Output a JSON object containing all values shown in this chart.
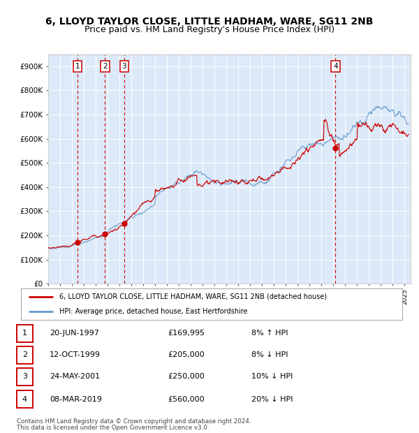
{
  "title": "6, LLOYD TAYLOR CLOSE, LITTLE HADHAM, WARE, SG11 2NB",
  "subtitle": "Price paid vs. HM Land Registry's House Price Index (HPI)",
  "red_label": "6, LLOYD TAYLOR CLOSE, LITTLE HADHAM, WARE, SG11 2NB (detached house)",
  "blue_label": "HPI: Average price, detached house, East Hertfordshire",
  "footer1": "Contains HM Land Registry data © Crown copyright and database right 2024.",
  "footer2": "This data is licensed under the Open Government Licence v3.0.",
  "transactions": [
    {
      "num": 1,
      "date": "20-JUN-1997",
      "price": 169995,
      "price_str": "£169,995",
      "pct": "8%",
      "dir": "↑",
      "year": 1997.47
    },
    {
      "num": 2,
      "date": "12-OCT-1999",
      "price": 205000,
      "price_str": "£205,000",
      "pct": "8%",
      "dir": "↓",
      "year": 1999.78
    },
    {
      "num": 3,
      "date": "24-MAY-2001",
      "price": 250000,
      "price_str": "£250,000",
      "pct": "10%",
      "dir": "↓",
      "year": 2001.39
    },
    {
      "num": 4,
      "date": "08-MAR-2019",
      "price": 560000,
      "price_str": "£560,000",
      "pct": "20%",
      "dir": "↓",
      "year": 2019.18
    }
  ],
  "xlim": [
    1995.0,
    2025.5
  ],
  "ylim": [
    0,
    950000
  ],
  "yticks": [
    0,
    100000,
    200000,
    300000,
    400000,
    500000,
    600000,
    700000,
    800000,
    900000
  ],
  "ytick_labels": [
    "£0",
    "£100K",
    "£200K",
    "£300K",
    "£400K",
    "£500K",
    "£600K",
    "£700K",
    "£800K",
    "£900K"
  ],
  "bg_color": "#dce9f8",
  "red_color": "#cc0000",
  "blue_color": "#6699cc",
  "grid_color": "#ffffff",
  "vline_color": "#cc0000",
  "title_fontsize": 10,
  "subtitle_fontsize": 9
}
